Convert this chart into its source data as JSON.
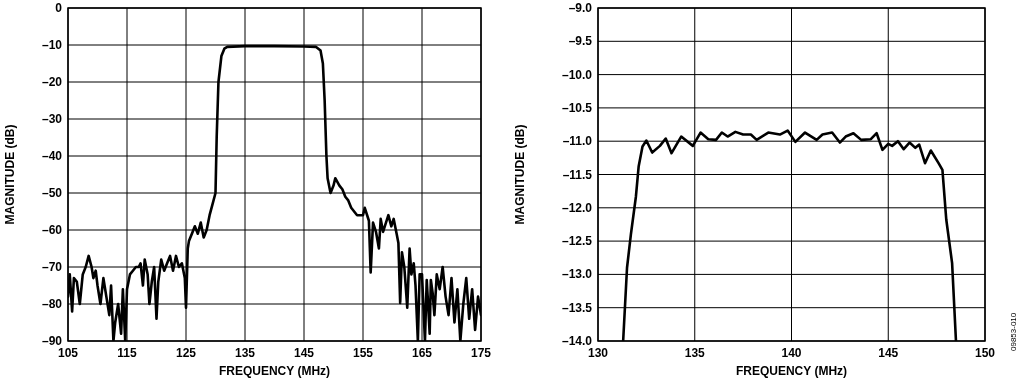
{
  "chart_data": [
    {
      "type": "line",
      "xlabel": "FREQUENCY (MHz)",
      "ylabel": "MAGNITUDE (dB)",
      "xlim": [
        105,
        175
      ],
      "xticks": [
        105,
        115,
        125,
        135,
        145,
        155,
        165,
        175
      ],
      "ylim": [
        -90,
        0
      ],
      "yticks": [
        0,
        {
          "value": -10,
          "label": "–10"
        },
        {
          "value": -20,
          "label": "–20"
        },
        {
          "value": -30,
          "label": "–30"
        },
        {
          "value": -40,
          "label": "–40"
        },
        {
          "value": -50,
          "label": "–50"
        },
        {
          "value": -60,
          "label": "–60"
        },
        {
          "value": -70,
          "label": "–70"
        },
        {
          "value": -80,
          "label": "–80"
        },
        {
          "value": -90,
          "label": "–90"
        }
      ],
      "grid": true,
      "marker": "none",
      "line_style": "solid",
      "series": [
        {
          "color": "#000000",
          "x": [
            105,
            105.3,
            105.7,
            106,
            106.5,
            107,
            107.5,
            108,
            108.5,
            109,
            109.3,
            109.7,
            110,
            110.5,
            111,
            111.5,
            112,
            112.3,
            112.7,
            113,
            113.5,
            114,
            114.3,
            114.7,
            115,
            115.5,
            116,
            116.5,
            117,
            117.3,
            117.7,
            118,
            118.5,
            118.8,
            119.2,
            119.6,
            120,
            120.3,
            120.8,
            121.3,
            121.8,
            122.3,
            122.8,
            123.3,
            123.8,
            124.3,
            124.8,
            125,
            125.3,
            125.5,
            126,
            126.5,
            127,
            127.5,
            128,
            128.5,
            129,
            129.5,
            130,
            130.2,
            130.5,
            131,
            131.5,
            132,
            135,
            140,
            145,
            147,
            147.8,
            148.2,
            148.5,
            148.8,
            149,
            149.5,
            150,
            150.3,
            151,
            151.5,
            152,
            152.5,
            153,
            154,
            155,
            155.3,
            156,
            156.3,
            156.7,
            157.2,
            157.7,
            158,
            158.4,
            158.8,
            159.3,
            159.8,
            160.2,
            160.7,
            161,
            161.3,
            161.6,
            162,
            162.5,
            162.9,
            163.2,
            163.6,
            163.9,
            164.3,
            164.6,
            165,
            165.5,
            165.8,
            166,
            166.3,
            166.5,
            166.8,
            167.1,
            167.5,
            168,
            168.5,
            169,
            169.5,
            170,
            170.5,
            171,
            171.5,
            172,
            172.5,
            173,
            173.5,
            174,
            174.5,
            175
          ],
          "values": [
            -78,
            -72,
            -82,
            -73,
            -74,
            -80,
            -72,
            -70,
            -67,
            -70,
            -73,
            -71,
            -75,
            -80,
            -73,
            -78,
            -83,
            -75,
            -90,
            -85,
            -80,
            -88,
            -76,
            -90,
            -76,
            -72,
            -71,
            -70,
            -70,
            -69,
            -75,
            -68,
            -72,
            -80,
            -74,
            -70,
            -84,
            -74,
            -68,
            -71,
            -69,
            -67,
            -71,
            -67,
            -70,
            -69,
            -73,
            -81,
            -65,
            -63,
            -61,
            -59,
            -61,
            -58,
            -62,
            -60,
            -56,
            -53,
            -50,
            -35,
            -20,
            -13,
            -11,
            -10.5,
            -10.3,
            -10.3,
            -10.4,
            -10.5,
            -11.5,
            -15,
            -25,
            -40,
            -46,
            -50,
            -48,
            -46,
            -48,
            -49,
            -51,
            -52,
            -54,
            -56,
            -56,
            -54,
            -57.5,
            -71.5,
            -58,
            -60.5,
            -65,
            -57,
            -60.5,
            -58.5,
            -56,
            -59,
            -57,
            -61,
            -63.5,
            -79.7,
            -66,
            -70,
            -81,
            -65,
            -72,
            -69,
            -75,
            -90,
            -72,
            -72,
            -90,
            -73.5,
            -79,
            -88,
            -73.5,
            -77,
            -83,
            -72,
            -76,
            -70,
            -78,
            -83,
            -73,
            -85,
            -76,
            -90,
            -80,
            -73,
            -84,
            -76,
            -87,
            -78,
            -83
          ]
        }
      ]
    },
    {
      "type": "line",
      "xlabel": "FREQUENCY (MHz)",
      "ylabel": "MAGNITUDE (dB)",
      "xlim": [
        130,
        150
      ],
      "xticks": [
        130,
        135,
        140,
        145,
        150
      ],
      "ylim": [
        -14,
        -9
      ],
      "yticks": [
        {
          "value": -9,
          "label": "–9.0"
        },
        {
          "value": -9.5,
          "label": "–9.5"
        },
        {
          "value": -10,
          "label": "–10.0"
        },
        {
          "value": -10.5,
          "label": "–10.5"
        },
        {
          "value": -11,
          "label": "–11.0"
        },
        {
          "value": -11.5,
          "label": "–11.5"
        },
        {
          "value": -12,
          "label": "–12.0"
        },
        {
          "value": -12.5,
          "label": "–12.5"
        },
        {
          "value": -13,
          "label": "–13.0"
        },
        {
          "value": -13.5,
          "label": "–13.5"
        },
        {
          "value": -14,
          "label": "–14.0"
        }
      ],
      "grid": true,
      "marker": "none",
      "line_style": "solid",
      "annotations": [
        "09853-010"
      ],
      "series": [
        {
          "color": "#000000",
          "x": [
            131.3,
            131.5,
            131.7,
            131.96,
            132.1,
            132.3,
            132.5,
            132.8,
            133.2,
            133.5,
            133.8,
            134.3,
            134.9,
            135.3,
            135.7,
            136.1,
            136.4,
            136.7,
            137.1,
            137.5,
            137.9,
            138.2,
            138.8,
            139.4,
            139.8,
            140.2,
            140.7,
            141.3,
            141.6,
            142.1,
            142.5,
            142.8,
            143.2,
            143.6,
            144.1,
            144.4,
            144.7,
            145,
            145.2,
            145.5,
            145.8,
            146.1,
            146.4,
            146.6,
            146.9,
            147.2,
            147.6,
            147.8,
            148,
            148.3,
            148.5
          ],
          "values": [
            -14,
            -12.9,
            -12.4,
            -11.83,
            -11.38,
            -11.08,
            -10.99,
            -11.17,
            -11.07,
            -10.96,
            -11.18,
            -10.93,
            -11.07,
            -10.87,
            -10.97,
            -10.98,
            -10.87,
            -10.93,
            -10.86,
            -10.9,
            -10.9,
            -10.98,
            -10.87,
            -10.9,
            -10.84,
            -11.01,
            -10.87,
            -10.98,
            -10.9,
            -10.87,
            -11.02,
            -10.93,
            -10.88,
            -10.98,
            -10.97,
            -10.88,
            -11.13,
            -11.04,
            -11.07,
            -11,
            -11.12,
            -11.02,
            -11.1,
            -11.05,
            -11.33,
            -11.14,
            -11.33,
            -11.43,
            -12.18,
            -12.83,
            -14
          ]
        }
      ]
    }
  ]
}
